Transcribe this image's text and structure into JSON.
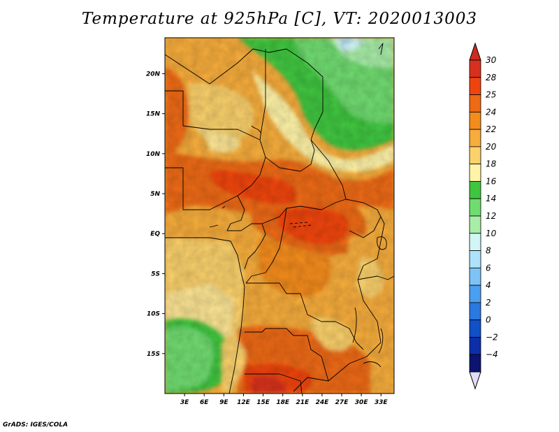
{
  "title": "Temperature at 925hPa [C], VT: 2020013003",
  "credit": "GrADS: IGES/COLA",
  "map": {
    "lon_range": [
      0,
      35
    ],
    "lat_range": [
      -20,
      24.5
    ],
    "lat_ticks": [
      {
        "value": 20,
        "label": "20N"
      },
      {
        "value": 15,
        "label": "15N"
      },
      {
        "value": 10,
        "label": "10N"
      },
      {
        "value": 5,
        "label": "5N"
      },
      {
        "value": 0,
        "label": "EQ"
      },
      {
        "value": -5,
        "label": "5S"
      },
      {
        "value": -10,
        "label": "10S"
      },
      {
        "value": -15,
        "label": "15S"
      }
    ],
    "lon_ticks": [
      {
        "value": 3,
        "label": "3E"
      },
      {
        "value": 6,
        "label": "6E"
      },
      {
        "value": 9,
        "label": "9E"
      },
      {
        "value": 12,
        "label": "12E"
      },
      {
        "value": 15,
        "label": "15E"
      },
      {
        "value": 18,
        "label": "18E"
      },
      {
        "value": 21,
        "label": "21E"
      },
      {
        "value": 24,
        "label": "24E"
      },
      {
        "value": 27,
        "label": "27E"
      },
      {
        "value": 30,
        "label": "30E"
      },
      {
        "value": 33,
        "label": "33E"
      }
    ]
  },
  "colorbar": {
    "labels": [
      "30",
      "28",
      "25",
      "24",
      "22",
      "20",
      "18",
      "16",
      "14",
      "12",
      "10",
      "8",
      "6",
      "4",
      "2",
      "0",
      "−2",
      "−4"
    ],
    "colors": [
      "#d7301f",
      "#f0440f",
      "#ee6a14",
      "#f48c1b",
      "#f7ad3c",
      "#fbd16c",
      "#fff4a8",
      "#3fc63f",
      "#6fdc6f",
      "#a8eda8",
      "#d2f5f5",
      "#aee2fb",
      "#7ec3f5",
      "#4a9ff0",
      "#2a78e0",
      "#1050c8",
      "#0c2ea8",
      "#0c1470"
    ],
    "top_color": "#cc2b1e",
    "bottom_color": "#e0dcf5"
  }
}
